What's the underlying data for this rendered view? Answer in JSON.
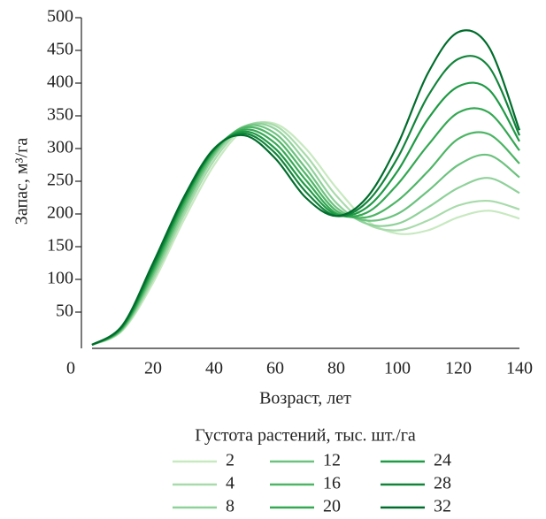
{
  "chart_data": {
    "type": "line",
    "xlabel": "Возраст, лет",
    "ylabel": "Запас, м³/га",
    "legend_title": "Густота растений, тыс. шт./га",
    "x": [
      0,
      10,
      20,
      30,
      40,
      50,
      60,
      70,
      80,
      90,
      100,
      110,
      120,
      130,
      140
    ],
    "series": [
      {
        "name": "2",
        "color": "#c7e9c0",
        "values": [
          0,
          22,
          95,
          190,
          275,
          330,
          338,
          300,
          240,
          190,
          170,
          175,
          195,
          205,
          193
        ]
      },
      {
        "name": "4",
        "color": "#a8dbab",
        "values": [
          0,
          23,
          100,
          197,
          282,
          333,
          335,
          290,
          228,
          185,
          175,
          190,
          213,
          220,
          207
        ]
      },
      {
        "name": "8",
        "color": "#8fd19a",
        "values": [
          0,
          24,
          104,
          203,
          288,
          334,
          330,
          280,
          217,
          185,
          185,
          210,
          240,
          255,
          232
        ]
      },
      {
        "name": "12",
        "color": "#6cc27e",
        "values": [
          0,
          25,
          108,
          208,
          292,
          334,
          323,
          270,
          210,
          190,
          200,
          235,
          275,
          290,
          256
        ]
      },
      {
        "name": "16",
        "color": "#4db565",
        "values": [
          0,
          26,
          112,
          213,
          295,
          332,
          316,
          261,
          205,
          195,
          220,
          265,
          315,
          322,
          277
        ]
      },
      {
        "name": "20",
        "color": "#35a853",
        "values": [
          0,
          27,
          115,
          217,
          297,
          329,
          308,
          252,
          201,
          202,
          245,
          305,
          355,
          355,
          297
        ]
      },
      {
        "name": "24",
        "color": "#1f9a45",
        "values": [
          0,
          28,
          118,
          220,
          298,
          326,
          300,
          243,
          199,
          210,
          265,
          345,
          395,
          390,
          311
        ]
      },
      {
        "name": "28",
        "color": "#12843a",
        "values": [
          0,
          29,
          121,
          222,
          299,
          323,
          293,
          234,
          197,
          218,
          285,
          380,
          437,
          425,
          320
        ]
      },
      {
        "name": "32",
        "color": "#006d2c",
        "values": [
          0,
          30,
          125,
          225,
          300,
          320,
          285,
          225,
          197,
          225,
          305,
          415,
          478,
          455,
          328
        ]
      }
    ],
    "xlim": [
      0,
      140
    ],
    "xticks": [
      0,
      20,
      40,
      60,
      80,
      100,
      120,
      140
    ],
    "ylim": [
      0,
      500
    ],
    "yticks": [
      50,
      100,
      150,
      200,
      250,
      300,
      350,
      400,
      450,
      500
    ]
  }
}
